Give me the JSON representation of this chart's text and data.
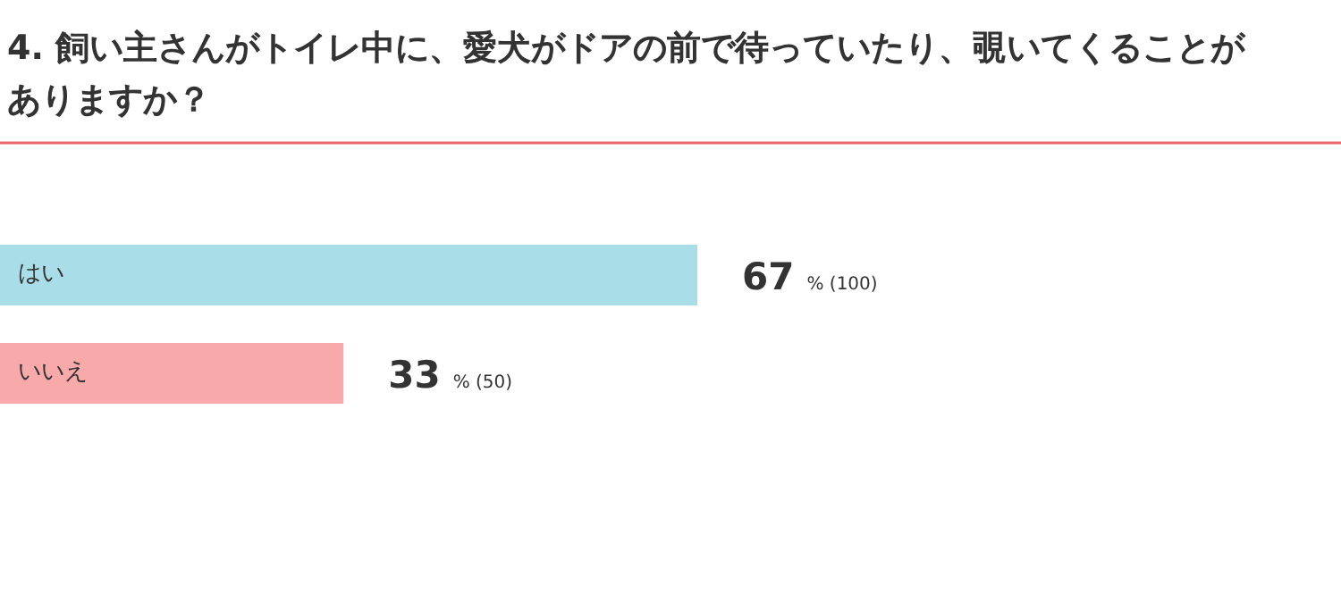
{
  "chart_data": {
    "type": "bar",
    "orientation": "horizontal",
    "title": "4. 飼い主さんがトイレ中に、愛犬がドアの前で待っていたり、覗いてくることがありますか？",
    "categories": [
      "はい",
      "いいえ"
    ],
    "values": [
      67,
      33
    ],
    "colors": [
      "#a9dde8",
      "#f8a9a9"
    ],
    "value_labels": [
      "67 % (100)",
      "33 % (50)"
    ]
  }
}
